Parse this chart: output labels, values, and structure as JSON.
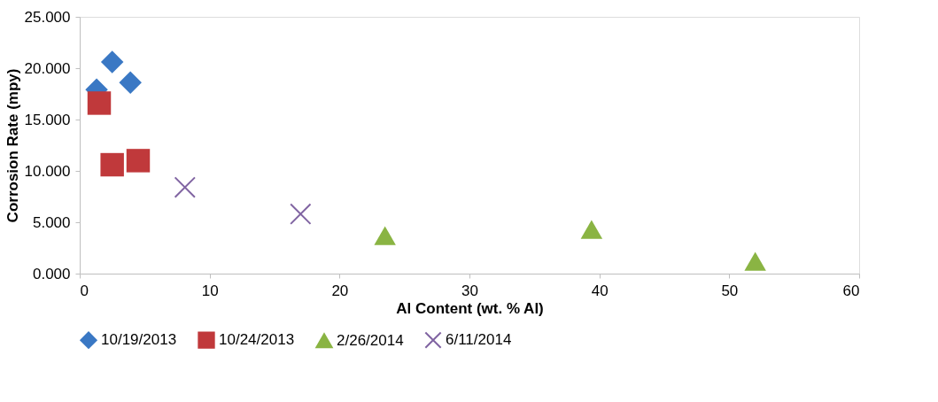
{
  "chart_data": {
    "type": "scatter",
    "xlabel": "Al Content (wt. % Al)",
    "ylabel": "Corrosion Rate (mpy)",
    "xlim": [
      0,
      60
    ],
    "xticks": [
      0,
      10,
      20,
      30,
      40,
      50,
      60
    ],
    "ylim": [
      0,
      25
    ],
    "yticks": [
      {
        "value": 0,
        "label": "0.000"
      },
      {
        "value": 5,
        "label": "5.000"
      },
      {
        "value": 10,
        "label": "10.000"
      },
      {
        "value": 15,
        "label": "15.000"
      },
      {
        "value": 20,
        "label": "20.000"
      },
      {
        "value": 25,
        "label": "25.000"
      }
    ],
    "grid": false,
    "legend": "bottom",
    "series": [
      {
        "name": "10/19/2013",
        "color": "#3a78c4",
        "marker": "diamond",
        "x": [
          1.3,
          2.5,
          3.9
        ],
        "values": [
          17.9,
          20.6,
          18.6
        ]
      },
      {
        "name": "10/24/2013",
        "color": "#c0393b",
        "marker": "square",
        "x": [
          1.5,
          2.5,
          4.5
        ],
        "values": [
          16.6,
          10.6,
          11.0
        ]
      },
      {
        "name": "2/26/2014",
        "color": "#8ab443",
        "marker": "triangle",
        "x": [
          23.5,
          39.4,
          52.0
        ],
        "values": [
          3.7,
          4.3,
          1.2
        ]
      },
      {
        "name": "6/11/2014",
        "color": "#8064a2",
        "marker": "cross",
        "x": [
          8.1,
          17.0
        ],
        "values": [
          8.4,
          5.8
        ]
      }
    ]
  }
}
